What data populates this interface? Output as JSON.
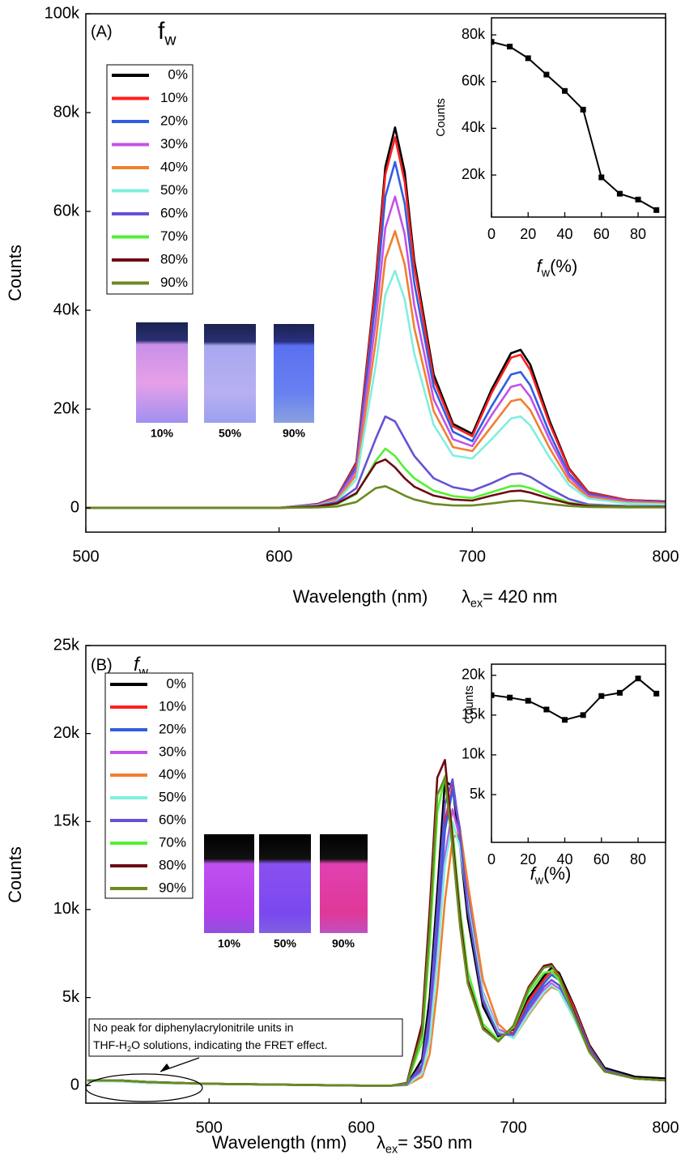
{
  "chart_data": [
    {
      "type": "line",
      "panel_label": "(A)",
      "x_label": "Wavelength (nm)",
      "y_label": "Counts",
      "excitation": {
        "symbol": "λ",
        "subscript": "ex",
        "text": "= 420 nm"
      },
      "legend_title": {
        "symbol": "f",
        "subscript": "w"
      },
      "photo_labels": [
        "10%",
        "50%",
        "90%"
      ],
      "xlim": [
        500,
        800
      ],
      "xticks": [
        500,
        600,
        700,
        800
      ],
      "ylim": [
        -4900,
        100000
      ],
      "yticks": [
        0,
        {
          "value": 20000,
          "label": "20k"
        },
        {
          "value": 40000,
          "label": "40k"
        },
        {
          "value": 60000,
          "label": "60k"
        },
        {
          "value": 80000,
          "label": "80k"
        },
        {
          "value": 100000,
          "label": "100k"
        }
      ],
      "x": [
        500,
        550,
        600,
        620,
        630,
        640,
        650,
        655,
        660,
        665,
        670,
        680,
        690,
        700,
        710,
        720,
        725,
        730,
        740,
        750,
        760,
        780,
        800
      ],
      "series": [
        {
          "name": "0%",
          "color": "#000000",
          "values": [
            0,
            0,
            0,
            800,
            2300,
            9200,
            46000,
            69000,
            77000,
            68000,
            50000,
            27000,
            17000,
            15000,
            24000,
            31300,
            32000,
            29000,
            17600,
            8000,
            3200,
            1600,
            1300
          ]
        },
        {
          "name": "10%",
          "color": "#ff1f1f",
          "values": [
            0,
            0,
            0,
            750,
            2250,
            9000,
            45000,
            67500,
            75000,
            66000,
            48800,
            26000,
            16500,
            14500,
            23300,
            30400,
            31000,
            27900,
            17000,
            7800,
            3100,
            1600,
            1200
          ]
        },
        {
          "name": "20%",
          "color": "#2f5fe0",
          "values": [
            0,
            0,
            0,
            700,
            2100,
            8400,
            42000,
            63000,
            70000,
            61600,
            45500,
            24500,
            15400,
            13500,
            20600,
            27000,
            27500,
            24800,
            15100,
            6900,
            2800,
            1400,
            1100
          ]
        },
        {
          "name": "30%",
          "color": "#c452e6",
          "values": [
            0,
            0,
            0,
            630,
            1900,
            7600,
            37800,
            56700,
            63000,
            55400,
            41000,
            22000,
            13900,
            12500,
            18800,
            24500,
            25000,
            22500,
            13800,
            6300,
            2500,
            1300,
            1000
          ]
        },
        {
          "name": "40%",
          "color": "#f0802e",
          "values": [
            0,
            0,
            0,
            560,
            1700,
            6700,
            33600,
            50400,
            56000,
            49300,
            36400,
            19600,
            12300,
            11500,
            16500,
            21600,
            22000,
            19800,
            12100,
            5500,
            2200,
            1100,
            900
          ]
        },
        {
          "name": "50%",
          "color": "#7fefe0",
          "values": [
            0,
            0,
            0,
            480,
            1400,
            5800,
            28800,
            43200,
            48000,
            42200,
            31200,
            16800,
            10600,
            10000,
            13900,
            18100,
            18500,
            16700,
            10200,
            4600,
            1900,
            900,
            700
          ]
        },
        {
          "name": "60%",
          "color": "#6452d6",
          "values": [
            0,
            0,
            0,
            400,
            1200,
            4000,
            14000,
            18500,
            17500,
            14000,
            10500,
            6000,
            4200,
            3500,
            5000,
            6800,
            7000,
            6300,
            3900,
            1800,
            700,
            400,
            300
          ]
        },
        {
          "name": "70%",
          "color": "#52f032",
          "values": [
            0,
            0,
            0,
            300,
            800,
            2800,
            9500,
            12000,
            10500,
            8000,
            6000,
            3500,
            2400,
            2000,
            3200,
            4400,
            4500,
            4000,
            2500,
            1100,
            500,
            300,
            200
          ]
        },
        {
          "name": "80%",
          "color": "#6e0a14",
          "values": [
            0,
            0,
            0,
            300,
            900,
            3000,
            9000,
            9800,
            8200,
            6000,
            4300,
            2500,
            1700,
            1500,
            2500,
            3400,
            3500,
            3100,
            1900,
            900,
            400,
            200,
            200
          ]
        },
        {
          "name": "90%",
          "color": "#6b8a22",
          "values": [
            0,
            0,
            0,
            100,
            300,
            1200,
            4000,
            4400,
            3500,
            2500,
            1700,
            800,
            500,
            500,
            900,
            1400,
            1500,
            1300,
            800,
            400,
            200,
            100,
            100
          ]
        }
      ]
    },
    {
      "type": "line",
      "marker": "square",
      "y_label": "Counts",
      "x_label": {
        "symbol": "f",
        "subscript": "w",
        "text": "(%)"
      },
      "xlim": [
        0,
        95
      ],
      "xticks": [
        0,
        20,
        40,
        60,
        80
      ],
      "ylim": [
        2000,
        87300
      ],
      "yticks": [
        {
          "value": 20000,
          "label": "20k"
        },
        {
          "value": 40000,
          "label": "40k"
        },
        {
          "value": 60000,
          "label": "60k"
        },
        {
          "value": 80000,
          "label": "80k"
        }
      ],
      "x": [
        0,
        10,
        20,
        30,
        40,
        50,
        60,
        70,
        80,
        90
      ],
      "color": "#000000",
      "values": [
        77000,
        75000,
        70000,
        63000,
        56000,
        48000,
        19000,
        12000,
        9500,
        5000
      ]
    },
    {
      "type": "line",
      "panel_label": "(B)",
      "x_label": "Wavelength (nm)",
      "y_label": "Counts",
      "excitation": {
        "symbol": "λ",
        "subscript": "ex",
        "text": "= 350 nm"
      },
      "legend_title": {
        "symbol": "f",
        "subscript": "w"
      },
      "photo_labels": [
        "10%",
        "50%",
        "90%"
      ],
      "annotation": {
        "line1": "No peak for diphenylacrylonitrile units in",
        "line2": {
          "text": "THF-H",
          "subscript": "2",
          "text_after": "O solutions, indicating the FRET effect."
        }
      },
      "xlim": [
        419,
        800
      ],
      "xticks": [
        500,
        600,
        700,
        800
      ],
      "ylim": [
        -1000,
        25000
      ],
      "yticks": [
        0,
        {
          "value": 5000,
          "label": "5k"
        },
        {
          "value": 10000,
          "label": "10k"
        },
        {
          "value": 15000,
          "label": "15k"
        },
        {
          "value": 20000,
          "label": "20k"
        },
        {
          "value": 25000,
          "label": "25k"
        }
      ],
      "x": [
        420,
        440,
        460,
        500,
        550,
        600,
        620,
        630,
        640,
        645,
        650,
        655,
        660,
        665,
        670,
        680,
        690,
        700,
        710,
        720,
        725,
        730,
        740,
        750,
        760,
        780,
        800
      ],
      "series": [
        {
          "name": "0%",
          "color": "#000000",
          "values": [
            300,
            300,
            200,
            100,
            50,
            0,
            0,
            50,
            1500,
            5000,
            11000,
            17300,
            17000,
            13500,
            9500,
            4500,
            2800,
            3200,
            5000,
            6200,
            6700,
            6400,
            4500,
            2300,
            1000,
            500,
            400
          ]
        },
        {
          "name": "10%",
          "color": "#ff1f1f",
          "values": [
            300,
            300,
            200,
            100,
            50,
            0,
            0,
            50,
            1000,
            3500,
            9000,
            15000,
            17000,
            14500,
            10500,
            5000,
            3000,
            3000,
            4800,
            6000,
            6500,
            6200,
            4400,
            2200,
            900,
            400,
            300
          ]
        },
        {
          "name": "20%",
          "color": "#2f5fe0",
          "values": [
            300,
            250,
            200,
            100,
            50,
            0,
            0,
            50,
            900,
            3200,
            8500,
            14500,
            16800,
            14500,
            10800,
            5200,
            3100,
            2900,
            4600,
            5800,
            6300,
            6000,
            4200,
            2100,
            900,
            400,
            300
          ]
        },
        {
          "name": "30%",
          "color": "#c452e6",
          "values": [
            300,
            250,
            200,
            100,
            50,
            0,
            0,
            40,
            800,
            2800,
            7500,
            13000,
            15700,
            14000,
            10500,
            5300,
            3200,
            2800,
            4300,
            5400,
            5800,
            5500,
            3900,
            2000,
            800,
            400,
            300
          ]
        },
        {
          "name": "40%",
          "color": "#f0802e",
          "values": [
            250,
            250,
            150,
            100,
            50,
            0,
            0,
            30,
            500,
            1800,
            5500,
            10500,
            14000,
            14500,
            11500,
            6000,
            3500,
            2700,
            4000,
            5200,
            5600,
            5400,
            3800,
            1900,
            800,
            400,
            300
          ]
        },
        {
          "name": "50%",
          "color": "#7fefe0",
          "values": [
            250,
            250,
            150,
            100,
            50,
            0,
            0,
            40,
            700,
            2500,
            7000,
            12500,
            15000,
            13500,
            10300,
            5200,
            3100,
            2700,
            4100,
            5300,
            5700,
            5400,
            3800,
            1900,
            800,
            400,
            300
          ]
        },
        {
          "name": "60%",
          "color": "#6452d6",
          "values": [
            300,
            300,
            200,
            100,
            50,
            0,
            0,
            50,
            1200,
            4200,
            10000,
            16000,
            17400,
            14200,
            10000,
            4800,
            2900,
            2900,
            4400,
            5600,
            6000,
            5700,
            4000,
            2000,
            900,
            400,
            300
          ]
        },
        {
          "name": "70%",
          "color": "#52f032",
          "values": [
            300,
            300,
            200,
            100,
            50,
            0,
            0,
            100,
            2500,
            8000,
            15500,
            17600,
            14500,
            10000,
            6500,
            3500,
            2600,
            3300,
            5300,
            6400,
            6500,
            6000,
            4000,
            1900,
            800,
            400,
            300
          ]
        },
        {
          "name": "80%",
          "color": "#6e0a14",
          "values": [
            300,
            300,
            200,
            100,
            50,
            0,
            0,
            150,
            3500,
            10000,
            17500,
            18500,
            14000,
            9500,
            6000,
            3300,
            2500,
            3400,
            5600,
            6800,
            6900,
            6300,
            4100,
            1900,
            800,
            400,
            300
          ]
        },
        {
          "name": "90%",
          "color": "#6b8a22",
          "values": [
            300,
            300,
            200,
            100,
            50,
            0,
            0,
            120,
            3000,
            9000,
            16500,
            17500,
            13500,
            9000,
            5800,
            3200,
            2500,
            3400,
            5500,
            6700,
            6800,
            6200,
            4000,
            1900,
            800,
            400,
            300
          ]
        }
      ]
    },
    {
      "type": "line",
      "marker": "square",
      "y_label": "Counts",
      "x_label": {
        "symbol": "f",
        "subscript": "w",
        "text": "(%)"
      },
      "xlim": [
        0,
        95
      ],
      "xticks": [
        0,
        20,
        40,
        60,
        80
      ],
      "ylim": [
        -1000,
        21400
      ],
      "yticks": [
        {
          "value": 5000,
          "label": "5k"
        },
        {
          "value": 10000,
          "label": "10k"
        },
        {
          "value": 15000,
          "label": "15k"
        },
        {
          "value": 20000,
          "label": "20k"
        }
      ],
      "x": [
        0,
        10,
        20,
        30,
        40,
        50,
        60,
        70,
        80,
        90
      ],
      "color": "#000000",
      "values": [
        17500,
        17200,
        16800,
        15700,
        14400,
        15000,
        17400,
        17800,
        19600,
        17700
      ]
    }
  ]
}
